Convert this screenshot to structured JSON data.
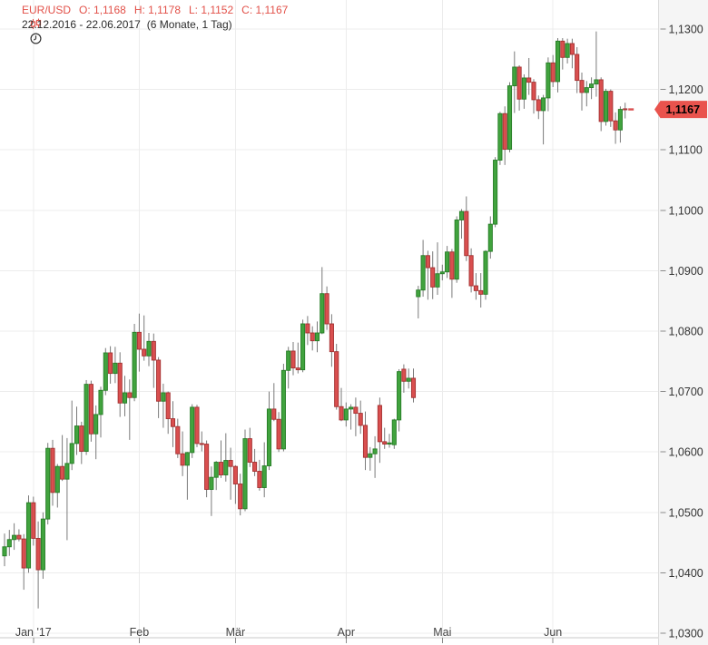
{
  "header": {
    "symbol": "EUR/USD",
    "ohlc": {
      "o": "O: 1,1168",
      "h": "H: 1,1178",
      "l": "L: 1,1152",
      "c": "C: 1,1167"
    },
    "date_range": "22.12.2016 - 22.06.2017",
    "interval": "(6 Monate, 1 Tag)"
  },
  "colors": {
    "up_fill": "#41a33e",
    "up_stroke": "#267d26",
    "down_fill": "#d94f4f",
    "down_stroke": "#a33030",
    "wick": "#7a7a7a",
    "grid": "#ececec",
    "axis_line": "#c9c9c9",
    "tick": "#8a8a8a",
    "y_label": "#333333",
    "x_label": "#444444",
    "panel_bg": "#f5f5f5",
    "panel_border": "#dcdcdc",
    "header_accent": "#e25048",
    "tag_bg": "#e9534d",
    "tag_text": "#000000",
    "marker": "#d94f4f"
  },
  "y_axis": {
    "ticks": [
      {
        "v": 1.03,
        "label": "1,0300"
      },
      {
        "v": 1.04,
        "label": "1,0400"
      },
      {
        "v": 1.05,
        "label": "1,0500"
      },
      {
        "v": 1.06,
        "label": "1,0600"
      },
      {
        "v": 1.07,
        "label": "1,0700"
      },
      {
        "v": 1.08,
        "label": "1,0800"
      },
      {
        "v": 1.09,
        "label": "1,0900"
      },
      {
        "v": 1.1,
        "label": "1,1000"
      },
      {
        "v": 1.11,
        "label": "1,1100"
      },
      {
        "v": 1.12,
        "label": "1,1200"
      },
      {
        "v": 1.13,
        "label": "1,1300"
      }
    ],
    "last_price": 1.1167,
    "last_price_label": "1,1167"
  },
  "x_axis": {
    "ticks": [
      {
        "label": "Jan '17",
        "i": 6
      },
      {
        "label": "Feb",
        "i": 28
      },
      {
        "label": "Mär",
        "i": 48
      },
      {
        "label": "Apr",
        "i": 71
      },
      {
        "label": "Mai",
        "i": 91
      },
      {
        "label": "Jun",
        "i": 114
      }
    ]
  },
  "chart_data": {
    "type": "candlestick",
    "title": "EUR/USD",
    "subtitle": "22.12.2016 - 22.06.2017 (6 Monate, 1 Tag)",
    "ylim": [
      1.03,
      1.13
    ],
    "grid": true,
    "columns": [
      "date",
      "open",
      "high",
      "low",
      "close"
    ],
    "candles": [
      [
        "22.12",
        1.0428,
        1.0465,
        1.0411,
        1.0443
      ],
      [
        "23.12",
        1.0443,
        1.0471,
        1.0428,
        1.0455
      ],
      [
        "27.12",
        1.0455,
        1.0482,
        1.0438,
        1.0462
      ],
      [
        "28.12",
        1.0462,
        1.0472,
        1.0452,
        1.0456
      ],
      [
        "29.12",
        1.0456,
        1.0464,
        1.0372,
        1.0408
      ],
      [
        "30.12",
        1.0408,
        1.0528,
        1.04,
        1.0516
      ],
      [
        "02.01",
        1.0516,
        1.0526,
        1.0445,
        1.0457
      ],
      [
        "03.01",
        1.0457,
        1.0485,
        1.0341,
        1.0405
      ],
      [
        "04.01",
        1.0405,
        1.05,
        1.039,
        1.0489
      ],
      [
        "05.01",
        1.0489,
        1.0615,
        1.048,
        1.0606
      ],
      [
        "06.01",
        1.0606,
        1.062,
        1.0511,
        1.0533
      ],
      [
        "09.01",
        1.0533,
        1.058,
        1.0508,
        1.0576
      ],
      [
        "10.01",
        1.0576,
        1.0628,
        1.0552,
        1.0555
      ],
      [
        "11.01",
        1.0555,
        1.0623,
        1.0454,
        1.0581
      ],
      [
        "12.01",
        1.0581,
        1.0685,
        1.057,
        1.0614
      ],
      [
        "13.01",
        1.0614,
        1.0675,
        1.0595,
        1.0643
      ],
      [
        "16.01",
        1.0643,
        1.065,
        1.058,
        1.0601
      ],
      [
        "17.01",
        1.0601,
        1.0719,
        1.0595,
        1.0712
      ],
      [
        "18.01",
        1.0712,
        1.0718,
        1.0617,
        1.063
      ],
      [
        "19.01",
        1.063,
        1.0677,
        1.0588,
        1.0662
      ],
      [
        "20.01",
        1.0662,
        1.0708,
        1.0624,
        1.0702
      ],
      [
        "23.01",
        1.0702,
        1.0772,
        1.0694,
        1.0764
      ],
      [
        "24.01",
        1.0764,
        1.0775,
        1.0713,
        1.073
      ],
      [
        "25.01",
        1.073,
        1.0774,
        1.0714,
        1.0747
      ],
      [
        "26.01",
        1.0747,
        1.0765,
        1.0658,
        1.0681
      ],
      [
        "27.01",
        1.0681,
        1.0726,
        1.0659,
        1.0698
      ],
      [
        "30.01",
        1.0698,
        1.072,
        1.062,
        1.069
      ],
      [
        "31.01",
        1.069,
        1.0812,
        1.0684,
        1.0798
      ],
      [
        "01.02",
        1.0798,
        1.0829,
        1.0733,
        1.077
      ],
      [
        "02.02",
        1.077,
        1.0826,
        1.0751,
        1.0759
      ],
      [
        "03.02",
        1.0759,
        1.0797,
        1.0742,
        1.0783
      ],
      [
        "06.02",
        1.0783,
        1.0796,
        1.0706,
        1.0752
      ],
      [
        "07.02",
        1.0752,
        1.0757,
        1.0656,
        1.0684
      ],
      [
        "08.02",
        1.0684,
        1.0713,
        1.064,
        1.0698
      ],
      [
        "09.02",
        1.0698,
        1.07,
        1.063,
        1.0655
      ],
      [
        "10.02",
        1.0655,
        1.0684,
        1.0608,
        1.0642
      ],
      [
        "13.02",
        1.0642,
        1.0655,
        1.059,
        1.0597
      ],
      [
        "14.02",
        1.0597,
        1.0634,
        1.056,
        1.0578
      ],
      [
        "15.02",
        1.0578,
        1.06,
        1.0521,
        1.0599
      ],
      [
        "16.02",
        1.0599,
        1.0679,
        1.059,
        1.0674
      ],
      [
        "17.02",
        1.0674,
        1.0678,
        1.0608,
        1.0614
      ],
      [
        "20.02",
        1.0614,
        1.0634,
        1.0601,
        1.0613
      ],
      [
        "21.02",
        1.0613,
        1.0619,
        1.0525,
        1.0538
      ],
      [
        "22.02",
        1.0538,
        1.0576,
        1.0494,
        1.0558
      ],
      [
        "23.02",
        1.0558,
        1.0585,
        1.0537,
        1.0583
      ],
      [
        "24.02",
        1.0583,
        1.0619,
        1.0557,
        1.0562
      ],
      [
        "27.02",
        1.0562,
        1.0631,
        1.0551,
        1.0586
      ],
      [
        "28.02",
        1.0586,
        1.0607,
        1.0521,
        1.0576
      ],
      [
        "01.03",
        1.0576,
        1.0578,
        1.0514,
        1.0547
      ],
      [
        "02.03",
        1.0547,
        1.0564,
        1.0495,
        1.0506
      ],
      [
        "03.03",
        1.0506,
        1.0637,
        1.0502,
        1.0622
      ],
      [
        "06.03",
        1.0622,
        1.064,
        1.0575,
        1.0583
      ],
      [
        "07.03",
        1.0583,
        1.0605,
        1.056,
        1.0568
      ],
      [
        "08.03",
        1.0568,
        1.0587,
        1.0536,
        1.0541
      ],
      [
        "09.03",
        1.0541,
        1.0616,
        1.0525,
        1.0577
      ],
      [
        "10.03",
        1.0577,
        1.07,
        1.057,
        1.0671
      ],
      [
        "13.03",
        1.0671,
        1.0714,
        1.0651,
        1.0654
      ],
      [
        "14.03",
        1.0654,
        1.0666,
        1.06,
        1.0605
      ],
      [
        "15.03",
        1.0605,
        1.0746,
        1.0601,
        1.0735
      ],
      [
        "16.03",
        1.0735,
        1.0774,
        1.0705,
        1.0767
      ],
      [
        "17.03",
        1.0767,
        1.0782,
        1.0727,
        1.0739
      ],
      [
        "20.03",
        1.0739,
        1.0781,
        1.073,
        1.0736
      ],
      [
        "21.03",
        1.0736,
        1.0819,
        1.0732,
        1.0812
      ],
      [
        "22.03",
        1.0812,
        1.0825,
        1.0777,
        1.0797
      ],
      [
        "23.03",
        1.0797,
        1.0808,
        1.0768,
        1.0784
      ],
      [
        "24.03",
        1.0784,
        1.0816,
        1.0765,
        1.0797
      ],
      [
        "27.03",
        1.0797,
        1.0906,
        1.0795,
        1.0862
      ],
      [
        "28.03",
        1.0862,
        1.0874,
        1.0802,
        1.0812
      ],
      [
        "29.03",
        1.0812,
        1.0828,
        1.0741,
        1.0766
      ],
      [
        "30.03",
        1.0766,
        1.0779,
        1.067,
        1.0675
      ],
      [
        "31.03",
        1.0675,
        1.0706,
        1.0651,
        1.0653
      ],
      [
        "03.04",
        1.0653,
        1.0682,
        1.0642,
        1.0671
      ],
      [
        "04.04",
        1.0671,
        1.0679,
        1.0637,
        1.0674
      ],
      [
        "05.04",
        1.0674,
        1.069,
        1.0626,
        1.0664
      ],
      [
        "06.04",
        1.0664,
        1.0685,
        1.063,
        1.0644
      ],
      [
        "07.04",
        1.0644,
        1.0667,
        1.057,
        1.0591
      ],
      [
        "10.04",
        1.0591,
        1.0608,
        1.0569,
        1.0597
      ],
      [
        "11.04",
        1.0597,
        1.0626,
        1.0557,
        1.0605
      ],
      [
        "12.04",
        1.0677,
        1.069,
        1.0582,
        1.0617
      ],
      [
        "13.04",
        1.0617,
        1.064,
        1.0605,
        1.0613
      ],
      [
        "14.04",
        1.0613,
        1.063,
        1.0607,
        1.0615
      ],
      [
        "17.04",
        1.0612,
        1.0655,
        1.0605,
        1.0653
      ],
      [
        "18.04",
        1.0653,
        1.0737,
        1.0634,
        1.0733
      ],
      [
        "19.04",
        1.0737,
        1.0745,
        1.0698,
        1.0717
      ],
      [
        "20.04",
        1.0717,
        1.0738,
        1.0705,
        1.0722
      ],
      [
        "21.04",
        1.0722,
        1.0738,
        1.0682,
        1.069
      ],
      [
        "24.04",
        1.0857,
        1.0875,
        1.0821,
        1.0868
      ],
      [
        "25.04",
        1.0868,
        1.0951,
        1.0857,
        1.0925
      ],
      [
        "26.04",
        1.0925,
        1.0933,
        1.0852,
        1.0905
      ],
      [
        "27.04",
        1.0905,
        1.0932,
        1.0853,
        1.0873
      ],
      [
        "28.04",
        1.0873,
        1.0947,
        1.086,
        1.0895
      ],
      [
        "01.05",
        1.0895,
        1.091,
        1.0884,
        1.0898
      ],
      [
        "02.05",
        1.0898,
        1.0941,
        1.0888,
        1.0931
      ],
      [
        "03.05",
        1.0931,
        1.0936,
        1.0855,
        1.0886
      ],
      [
        "04.05",
        1.0886,
        1.099,
        1.088,
        1.0984
      ],
      [
        "05.05",
        1.0984,
        1.1002,
        1.0953,
        1.0998
      ],
      [
        "08.05",
        1.0998,
        1.1023,
        1.0916,
        1.0925
      ],
      [
        "09.05",
        1.0925,
        1.0937,
        1.0864,
        1.0875
      ],
      [
        "10.05",
        1.0875,
        1.0896,
        1.0852,
        1.0867
      ],
      [
        "11.05",
        1.0867,
        1.0896,
        1.0839,
        1.0861
      ],
      [
        "12.05",
        1.0861,
        1.0934,
        1.0852,
        1.0932
      ],
      [
        "15.05",
        1.0932,
        1.099,
        1.092,
        1.0977
      ],
      [
        "16.05",
        1.0977,
        1.1088,
        1.0972,
        1.1083
      ],
      [
        "17.05",
        1.1083,
        1.1163,
        1.1075,
        1.116
      ],
      [
        "18.05",
        1.116,
        1.1172,
        1.1075,
        1.1101
      ],
      [
        "19.05",
        1.1101,
        1.1212,
        1.1096,
        1.1206
      ],
      [
        "22.05",
        1.1206,
        1.1263,
        1.1161,
        1.1237
      ],
      [
        "23.05",
        1.1237,
        1.124,
        1.1165,
        1.1184
      ],
      [
        "24.05",
        1.1184,
        1.1225,
        1.1168,
        1.1219
      ],
      [
        "25.05",
        1.1219,
        1.1252,
        1.1191,
        1.1212
      ],
      [
        "26.05",
        1.1212,
        1.1217,
        1.116,
        1.1183
      ],
      [
        "29.05",
        1.1183,
        1.119,
        1.1151,
        1.1165
      ],
      [
        "30.05",
        1.1165,
        1.1191,
        1.1109,
        1.1186
      ],
      [
        "31.05",
        1.1186,
        1.1253,
        1.1164,
        1.1244
      ],
      [
        "01.06",
        1.1244,
        1.1257,
        1.1204,
        1.1213
      ],
      [
        "02.06",
        1.1213,
        1.1285,
        1.1195,
        1.128
      ],
      [
        "05.06",
        1.128,
        1.1285,
        1.1233,
        1.1253
      ],
      [
        "06.06",
        1.1253,
        1.1284,
        1.1243,
        1.1276
      ],
      [
        "07.06",
        1.1276,
        1.1284,
        1.1235,
        1.1258
      ],
      [
        "08.06",
        1.1258,
        1.127,
        1.1194,
        1.1215
      ],
      [
        "09.06",
        1.1215,
        1.1228,
        1.1165,
        1.1195
      ],
      [
        "12.06",
        1.1195,
        1.1214,
        1.1172,
        1.1203
      ],
      [
        "13.06",
        1.1203,
        1.122,
        1.1184,
        1.1209
      ],
      [
        "14.06",
        1.1209,
        1.1296,
        1.1188,
        1.1216
      ],
      [
        "15.06",
        1.1216,
        1.122,
        1.1131,
        1.1147
      ],
      [
        "16.06",
        1.1147,
        1.1201,
        1.114,
        1.1197
      ],
      [
        "19.06",
        1.1197,
        1.12,
        1.1138,
        1.1148
      ],
      [
        "20.06",
        1.1148,
        1.1162,
        1.111,
        1.1133
      ],
      [
        "21.06",
        1.1133,
        1.1172,
        1.1112,
        1.1167
      ],
      [
        "22.06",
        1.1168,
        1.1178,
        1.1152,
        1.1167
      ]
    ]
  }
}
